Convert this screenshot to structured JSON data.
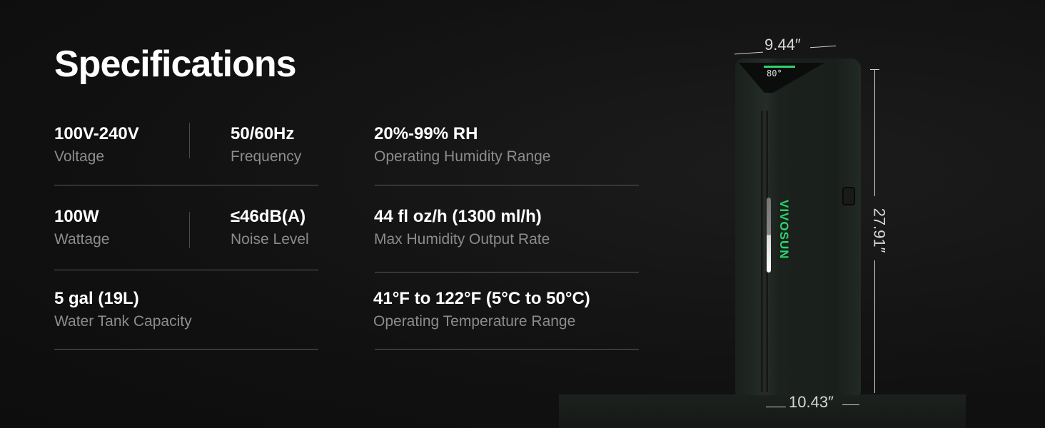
{
  "title": "Specifications",
  "specs": [
    {
      "value": "100V-240V",
      "label": "Voltage"
    },
    {
      "value": "50/60Hz",
      "label": "Frequency"
    },
    {
      "value": "20%-99% RH",
      "label": "Operating Humidity Range"
    },
    {
      "value": "100W",
      "label": "Wattage"
    },
    {
      "value": "≤46dB(A)",
      "label": "Noise Level"
    },
    {
      "value": "44 fl oz/h (1300 ml/h)",
      "label": "Max Humidity Output Rate"
    },
    {
      "value": "5 gal (19L)",
      "label": "Water Tank Capacity"
    },
    {
      "value": "41°F to 122°F (5°C to 50°C)",
      "label": "Operating Temperature Range"
    }
  ],
  "product": {
    "brand": "VIVOSUN",
    "display_readout": "80°",
    "width": "9.44″",
    "height": "27.91″",
    "depth": "10.43″",
    "accent_color": "#2bd46b"
  }
}
